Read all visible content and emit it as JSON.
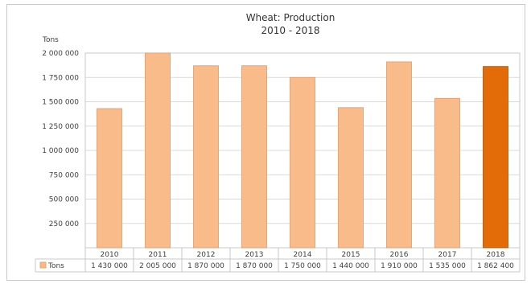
{
  "chart_data": {
    "type": "bar",
    "title": "Wheat: Production",
    "subtitle": "2010 - 2018",
    "ylabel": "Tons",
    "xlabel": "",
    "ylim": [
      0,
      2000000
    ],
    "yticks": [
      {
        "value": 250000,
        "label": "250 000"
      },
      {
        "value": 500000,
        "label": "500 000"
      },
      {
        "value": 750000,
        "label": "750 000"
      },
      {
        "value": 1000000,
        "label": "1 000 000"
      },
      {
        "value": 1250000,
        "label": "1 250 000"
      },
      {
        "value": 1500000,
        "label": "1 500 000"
      },
      {
        "value": 1750000,
        "label": "1 750 000"
      },
      {
        "value": 2000000,
        "label": "2 000 000"
      }
    ],
    "categories": [
      "2010",
      "2011",
      "2012",
      "2013",
      "2014",
      "2015",
      "2016",
      "2017",
      "2018"
    ],
    "series": [
      {
        "name": "Tons",
        "values": [
          1430000,
          2005000,
          1870000,
          1870000,
          1750000,
          1440000,
          1910000,
          1535000,
          1862400
        ],
        "value_labels": [
          "1 430 000",
          "2 005 000",
          "1 870 000",
          "1 870 000",
          "1 750 000",
          "1 440 000",
          "1 910 000",
          "1 535 000",
          "1 862 400"
        ]
      }
    ],
    "colors": {
      "bar": "#f9bb8a",
      "bar_border": "#e09a66",
      "highlight_bar": "#e36c09",
      "highlight_border": "#b35200",
      "grid": "#d9d9d9"
    },
    "highlight_index": 8,
    "grid": true,
    "legend": "data-table-left",
    "data_table": true
  }
}
